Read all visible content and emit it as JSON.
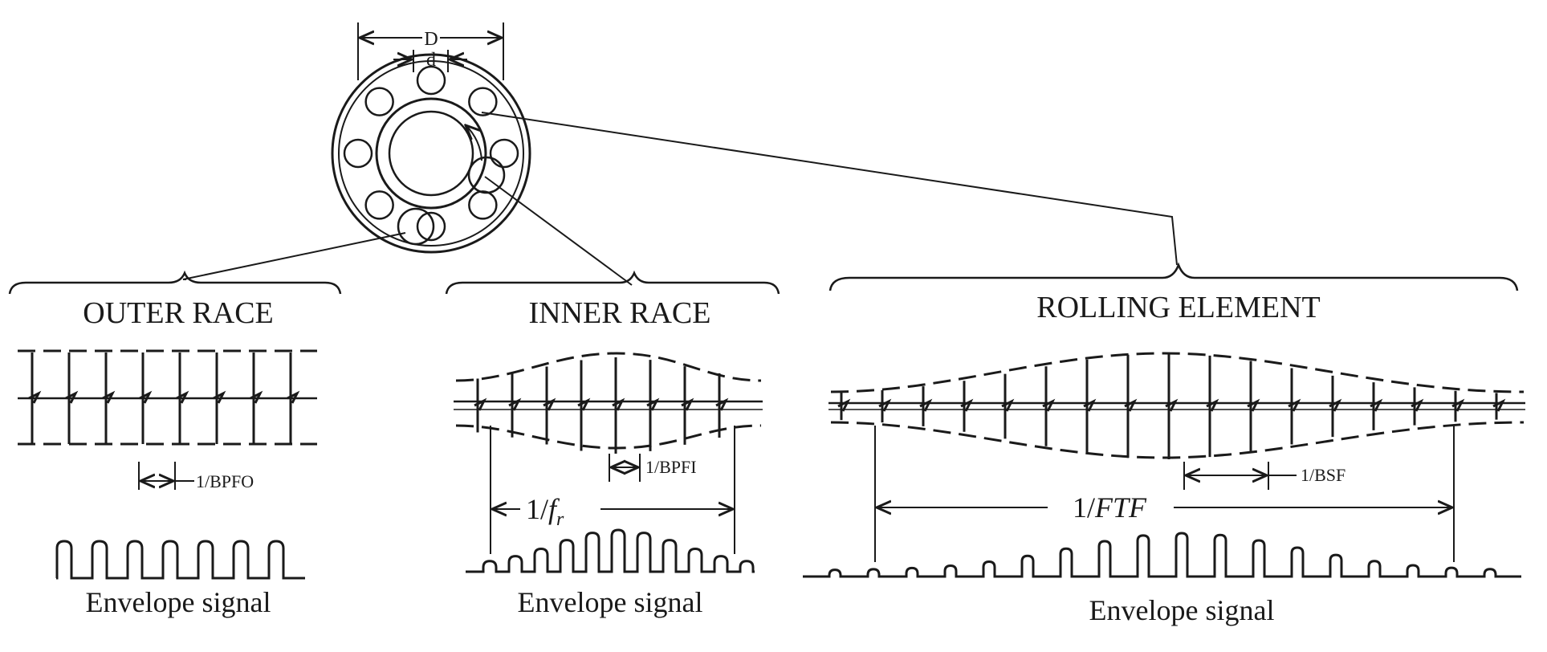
{
  "bearing": {
    "label_D": "D",
    "label_d": "d"
  },
  "panels": [
    {
      "id": "outer",
      "title": "OUTER RACE",
      "interval_label": "1/BPFO",
      "envelope_label": "Envelope signal"
    },
    {
      "id": "inner",
      "title": "INNER RACE",
      "interval_label": "1/BPFI",
      "period_label": "1/f_r",
      "envelope_label": "Envelope signal"
    },
    {
      "id": "rolling",
      "title": "ROLLING ELEMENT",
      "interval_label": "1/BSF",
      "period_label": "1/FTF",
      "envelope_label": "Envelope signal"
    }
  ]
}
